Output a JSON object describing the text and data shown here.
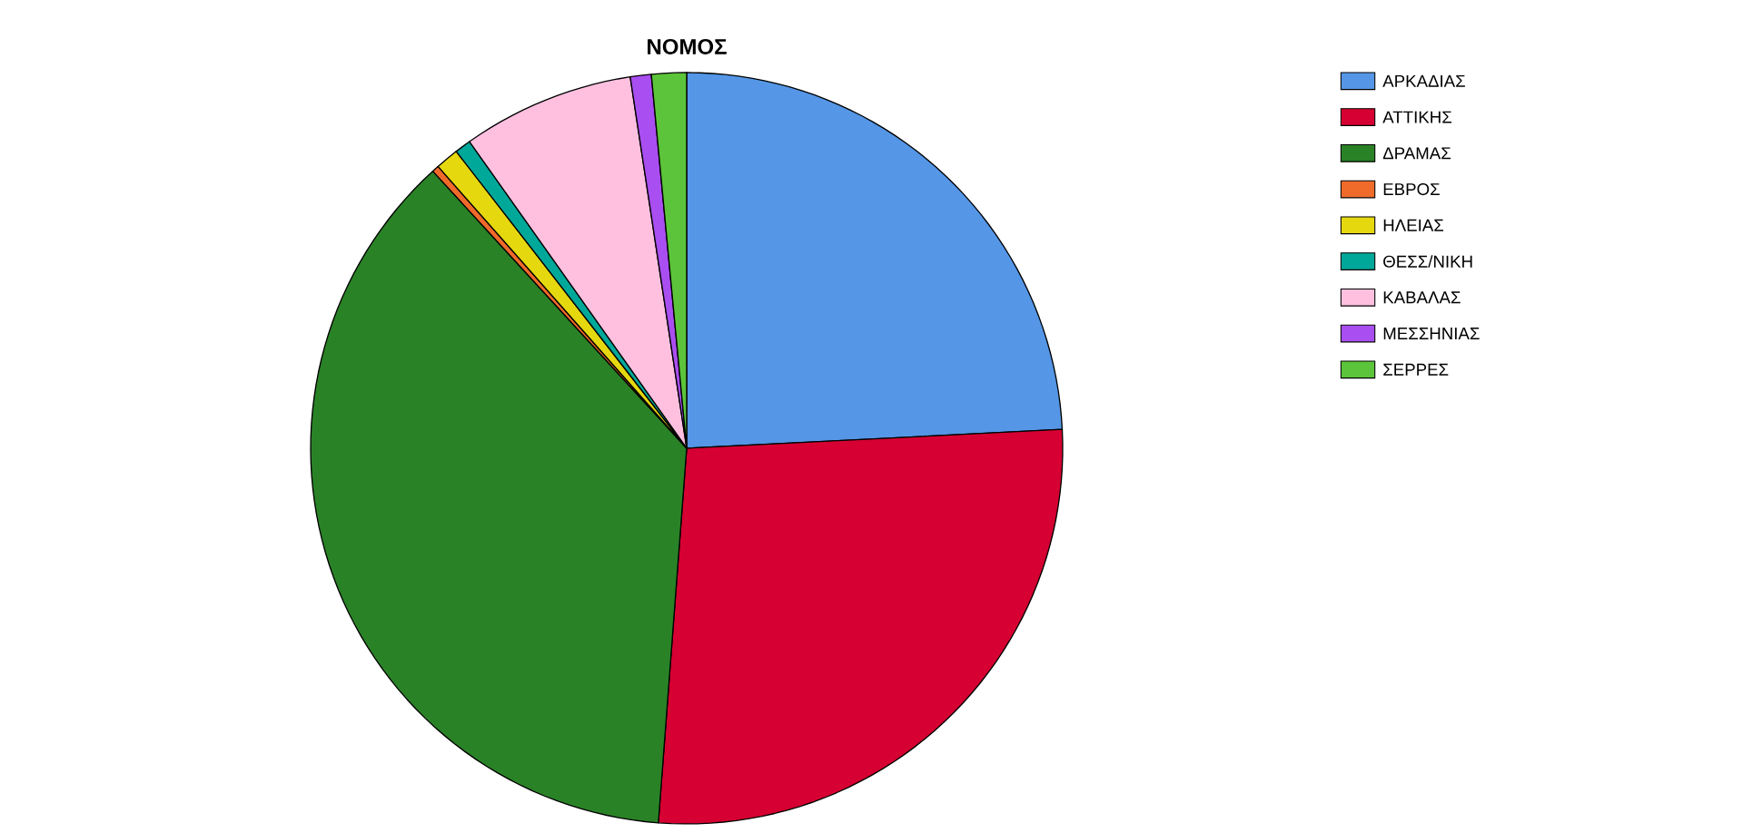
{
  "chart_data": {
    "type": "pie",
    "title": "ΝΟΜΟΣ",
    "categories": [
      "ΑΡΚΑΔΙΑΣ",
      "ΑΤΤΙΚΗΣ",
      "ΔΡΑΜΑΣ",
      "ΕΒΡΟΣ",
      "ΗΛΕΙΑΣ",
      "ΘΕΣΣ/ΝΙΚΗ",
      "ΚΑΒΑΛΑΣ",
      "ΜΕΣΣΗΝΙΑΣ",
      "ΣΕΡΡΕΣ"
    ],
    "values": [
      24.2,
      27.0,
      37.0,
      0.3,
      1.0,
      0.7,
      7.4,
      0.9,
      1.5
    ],
    "colors": [
      "#5596e6",
      "#d60032",
      "#2a8227",
      "#f06a2a",
      "#e6d80f",
      "#00a89a",
      "#ffc0e0",
      "#a94ef0",
      "#5cc43a"
    ],
    "legend": "top right"
  }
}
